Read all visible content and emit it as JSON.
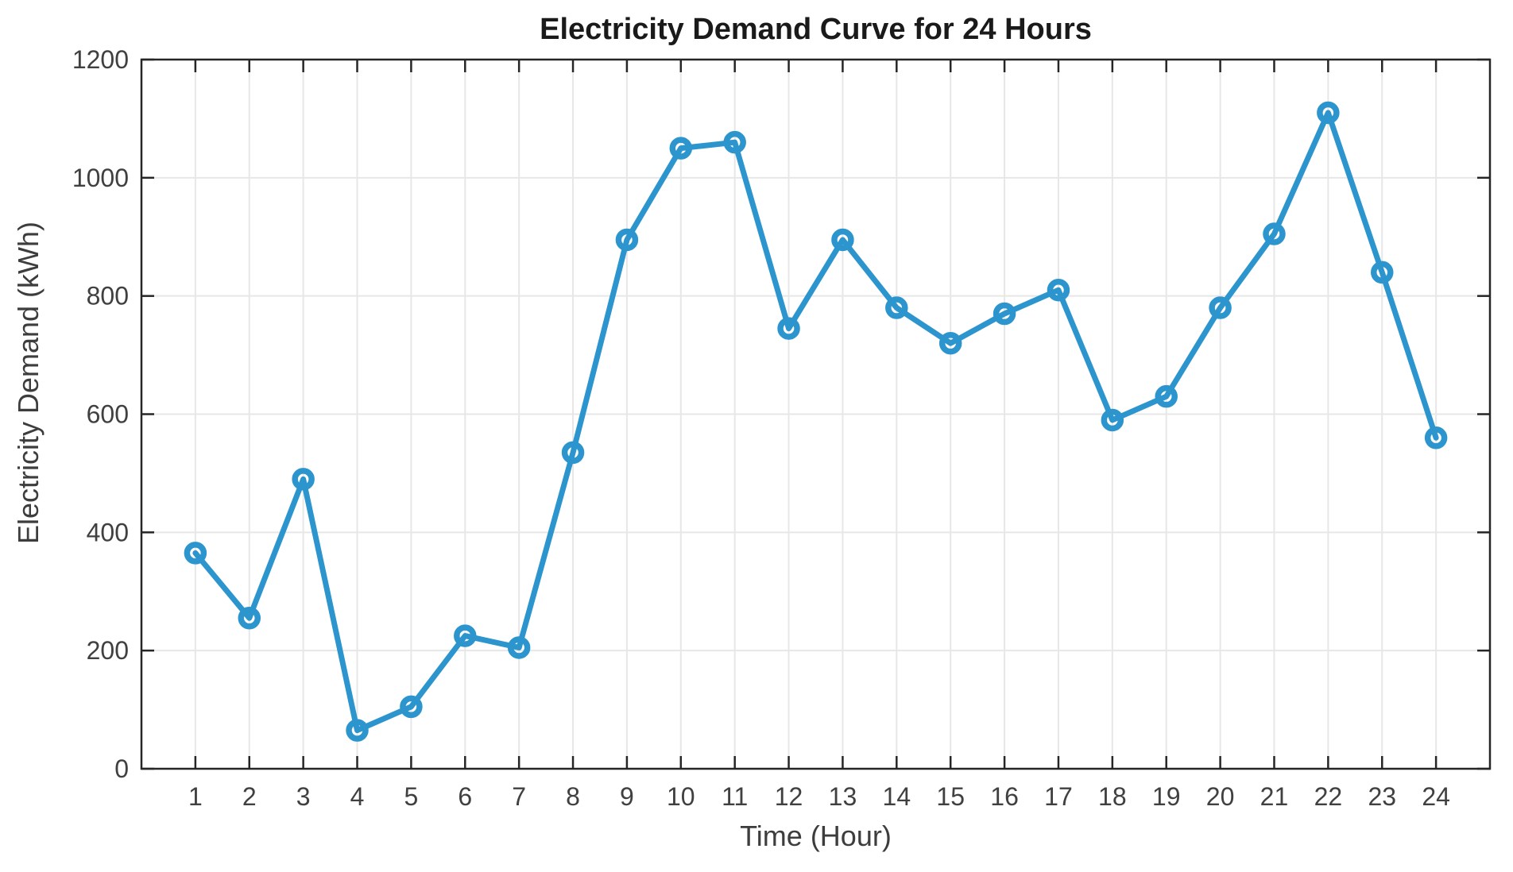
{
  "chart_data": {
    "type": "line",
    "title": "Electricity Demand Curve for 24 Hours",
    "xlabel": "Time (Hour)",
    "ylabel": "Electricity Demand (kWh)",
    "x": [
      1,
      2,
      3,
      4,
      5,
      6,
      7,
      8,
      9,
      10,
      11,
      12,
      13,
      14,
      15,
      16,
      17,
      18,
      19,
      20,
      21,
      22,
      23,
      24
    ],
    "series": [
      {
        "name": "Electricity Demand",
        "values": [
          365,
          255,
          490,
          65,
          105,
          225,
          205,
          535,
          895,
          1050,
          1060,
          745,
          895,
          780,
          720,
          770,
          810,
          590,
          630,
          780,
          905,
          1110,
          840,
          560
        ]
      }
    ],
    "xlim": [
      0,
      25
    ],
    "ylim": [
      0,
      1200
    ],
    "xticks": [
      1,
      2,
      3,
      4,
      5,
      6,
      7,
      8,
      9,
      10,
      11,
      12,
      13,
      14,
      15,
      16,
      17,
      18,
      19,
      20,
      21,
      22,
      23,
      24
    ],
    "yticks": [
      0,
      200,
      400,
      600,
      800,
      1000,
      1200
    ],
    "grid": true,
    "legend_position": "none",
    "marker_style": "open-circle",
    "colors": {
      "line": "#2D95CE",
      "grid": "#E7E7E7",
      "axis": "#262626",
      "tick_label": "#404040",
      "title": "#1A1A1A",
      "background": "#FFFFFF"
    }
  }
}
